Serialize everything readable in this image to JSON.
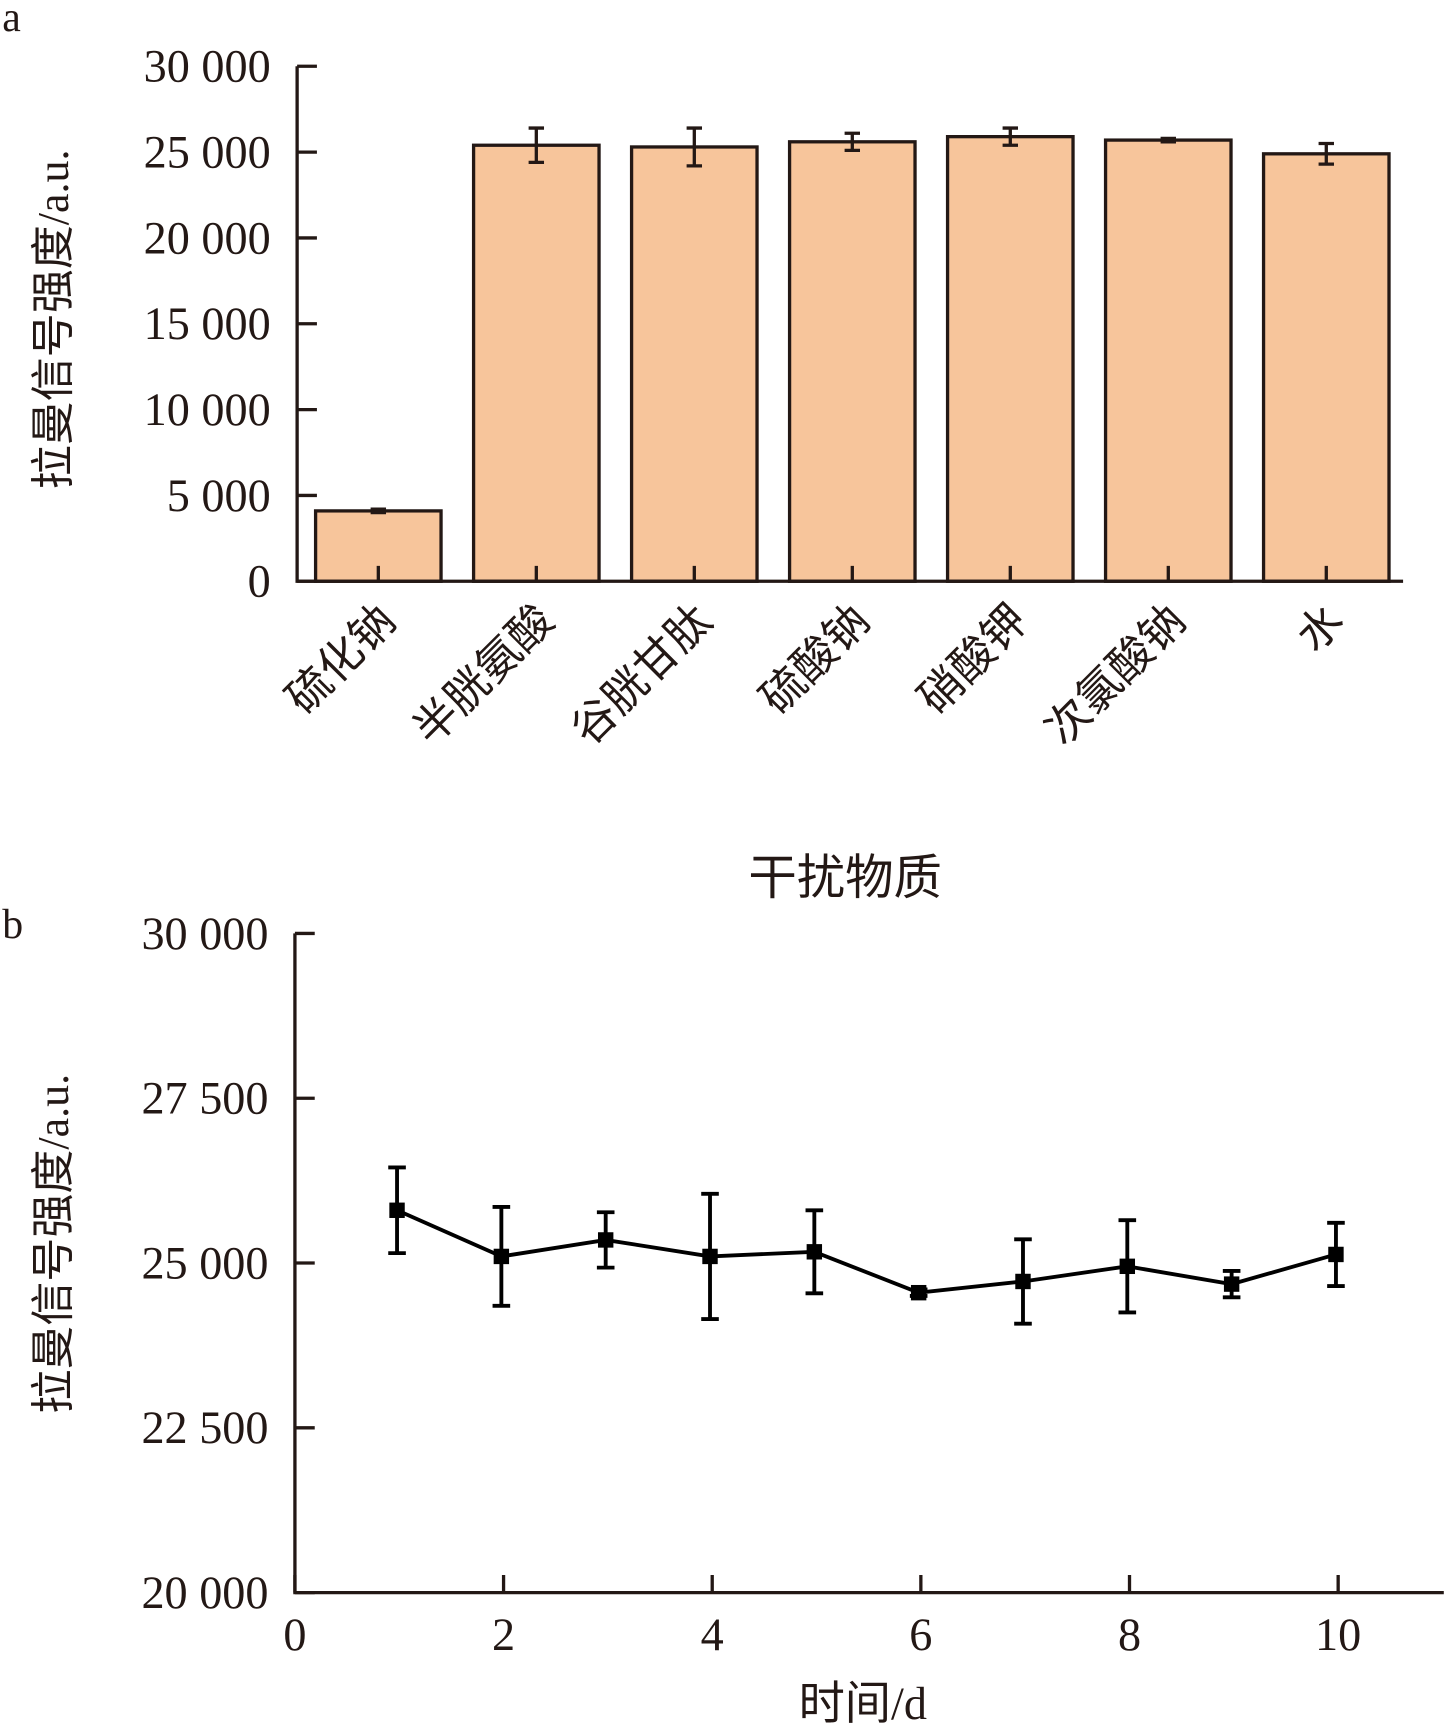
{
  "chart_data": [
    {
      "panel_label": "a",
      "type": "bar",
      "title": "",
      "xlabel": "干扰物质",
      "ylabel": "拉曼信号强度/a.u.",
      "ylim": [
        0,
        30000
      ],
      "yticks": [
        0,
        5000,
        10000,
        15000,
        20000,
        25000,
        30000
      ],
      "ytick_labels": [
        "0",
        "5 000",
        "10 000",
        "15 000",
        "20 000",
        "25 000",
        "30 000"
      ],
      "categories": [
        "硫化钠",
        "半胱氨酸",
        "谷胱甘肽",
        "硫酸钠",
        "硝酸钾",
        "次氯酸钠",
        "水"
      ],
      "values": [
        4100,
        25400,
        25300,
        25600,
        25900,
        25700,
        24900
      ],
      "errors": [
        100,
        1000,
        1100,
        500,
        500,
        100,
        600
      ],
      "bar_color": "#f7c59b",
      "grid": false
    },
    {
      "panel_label": "b",
      "type": "line",
      "title": "",
      "xlabel": "时间/d",
      "ylabel": "拉曼信号强度/a.u.",
      "xlim": [
        0,
        11
      ],
      "ylim": [
        20000,
        30000
      ],
      "xticks": [
        0,
        2,
        4,
        6,
        8,
        10
      ],
      "xtick_labels": [
        "0",
        "2",
        "4",
        "6",
        "8",
        "10"
      ],
      "yticks": [
        20000,
        22500,
        25000,
        27500,
        30000
      ],
      "ytick_labels": [
        "20 000",
        "22 500",
        "25 000",
        "27 500",
        "30 000"
      ],
      "x": [
        1,
        2,
        3,
        4,
        5,
        6,
        7,
        8,
        9,
        10
      ],
      "values": [
        25800,
        25100,
        25350,
        25100,
        25170,
        24550,
        24720,
        24950,
        24680,
        25130
      ],
      "errors": [
        650,
        750,
        420,
        950,
        630,
        50,
        640,
        700,
        200,
        480
      ],
      "line_color": "#000000",
      "grid": false
    }
  ]
}
